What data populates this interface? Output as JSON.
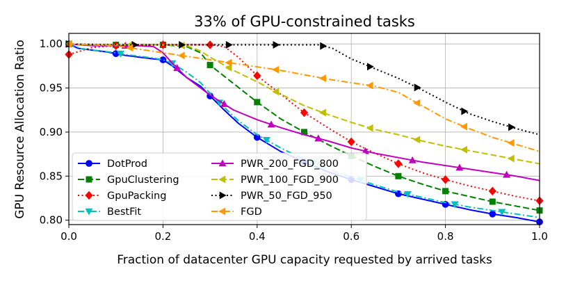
{
  "chart_data": {
    "type": "line",
    "title": "33% of GPU-constrained tasks",
    "xlabel": "Fraction of datacenter GPU capacity requested by arrived tasks",
    "ylabel": "GPU Resource Allocation Ratio",
    "xlim": [
      0.0,
      1.0
    ],
    "ylim": [
      0.795,
      1.012
    ],
    "xticks": [
      "0.0",
      "0.2",
      "0.4",
      "0.6",
      "0.8",
      "1.0"
    ],
    "yticks": [
      "0.80",
      "0.85",
      "0.90",
      "0.95",
      "1.00"
    ],
    "grid": true,
    "legend_position": "lower-left",
    "series": [
      {
        "name": "DotProd",
        "color": "#0000ff",
        "dash": "solid",
        "marker": "circle",
        "x": [
          0.0,
          0.02,
          0.05,
          0.08,
          0.1,
          0.12,
          0.15,
          0.18,
          0.2,
          0.22,
          0.25,
          0.28,
          0.3,
          0.33,
          0.36,
          0.4,
          0.45,
          0.5,
          0.55,
          0.6,
          0.65,
          0.7,
          0.75,
          0.8,
          0.85,
          0.9,
          0.95,
          1.0
        ],
        "y": [
          1.0,
          0.995,
          0.993,
          0.991,
          0.989,
          0.987,
          0.985,
          0.983,
          0.982,
          0.975,
          0.962,
          0.952,
          0.941,
          0.925,
          0.91,
          0.894,
          0.878,
          0.866,
          0.855,
          0.846,
          0.838,
          0.83,
          0.824,
          0.818,
          0.812,
          0.807,
          0.803,
          0.798
        ],
        "markers_at": [
          0.0,
          0.1,
          0.2,
          0.3,
          0.4,
          0.5,
          0.6,
          0.7,
          0.8,
          0.9,
          1.0
        ]
      },
      {
        "name": "GpuClustering",
        "color": "#008000",
        "dash": "long",
        "marker": "square",
        "x": [
          0.0,
          0.05,
          0.1,
          0.15,
          0.2,
          0.25,
          0.28,
          0.3,
          0.35,
          0.4,
          0.45,
          0.5,
          0.55,
          0.6,
          0.65,
          0.7,
          0.75,
          0.8,
          0.85,
          0.9,
          0.95,
          1.0
        ],
        "y": [
          1.0,
          0.999,
          0.999,
          0.999,
          0.999,
          0.997,
          0.99,
          0.976,
          0.955,
          0.934,
          0.915,
          0.9,
          0.886,
          0.873,
          0.861,
          0.85,
          0.841,
          0.833,
          0.827,
          0.821,
          0.816,
          0.811
        ],
        "markers_at": [
          0.0,
          0.1,
          0.2,
          0.3,
          0.4,
          0.5,
          0.6,
          0.7,
          0.8,
          0.9,
          1.0
        ]
      },
      {
        "name": "GpuPacking",
        "color": "#ff0000",
        "dash": "dot",
        "marker": "diamond",
        "x": [
          0.0,
          0.05,
          0.1,
          0.15,
          0.2,
          0.25,
          0.3,
          0.33,
          0.36,
          0.4,
          0.45,
          0.5,
          0.55,
          0.6,
          0.65,
          0.7,
          0.75,
          0.8,
          0.85,
          0.9,
          0.95,
          1.0
        ],
        "y": [
          0.988,
          0.996,
          0.998,
          0.999,
          0.999,
          0.999,
          0.999,
          0.997,
          0.985,
          0.964,
          0.943,
          0.922,
          0.905,
          0.889,
          0.876,
          0.864,
          0.854,
          0.846,
          0.839,
          0.833,
          0.827,
          0.822
        ],
        "markers_at": [
          0.0,
          0.1,
          0.2,
          0.3,
          0.4,
          0.5,
          0.6,
          0.7,
          0.8,
          0.9,
          1.0
        ]
      },
      {
        "name": "BestFit",
        "color": "#00bfbf",
        "dash": "dashdot",
        "marker": "triangle-down",
        "x": [
          0.0,
          0.03,
          0.07,
          0.1,
          0.12,
          0.15,
          0.18,
          0.2,
          0.22,
          0.25,
          0.28,
          0.3,
          0.33,
          0.36,
          0.4,
          0.45,
          0.5,
          0.55,
          0.6,
          0.65,
          0.7,
          0.75,
          0.8,
          0.85,
          0.9,
          0.95,
          1.0
        ],
        "y": [
          1.0,
          0.994,
          0.992,
          0.99,
          0.988,
          0.986,
          0.984,
          0.982,
          0.978,
          0.968,
          0.956,
          0.944,
          0.928,
          0.913,
          0.897,
          0.882,
          0.869,
          0.858,
          0.849,
          0.84,
          0.832,
          0.826,
          0.82,
          0.815,
          0.811,
          0.807,
          0.803
        ],
        "markers_at": [
          0.0,
          0.11,
          0.22,
          0.32,
          0.42,
          0.52,
          0.62,
          0.72,
          0.82,
          0.92
        ]
      },
      {
        "name": "PWR_200_FGD_800",
        "color": "#bf00bf",
        "dash": "solid",
        "marker": "triangle-up",
        "x": [
          0.0,
          0.05,
          0.1,
          0.15,
          0.18,
          0.2,
          0.22,
          0.25,
          0.3,
          0.35,
          0.4,
          0.45,
          0.5,
          0.55,
          0.6,
          0.65,
          0.7,
          0.75,
          0.8,
          0.85,
          0.9,
          0.95,
          1.0
        ],
        "y": [
          1.0,
          0.998,
          0.998,
          0.998,
          0.997,
          0.99,
          0.978,
          0.962,
          0.942,
          0.925,
          0.914,
          0.905,
          0.897,
          0.89,
          0.882,
          0.876,
          0.871,
          0.866,
          0.862,
          0.858,
          0.854,
          0.85,
          0.845
        ],
        "markers_at": [
          0.0,
          0.12,
          0.23,
          0.33,
          0.43,
          0.53,
          0.63,
          0.73,
          0.83,
          0.93
        ]
      },
      {
        "name": "PWR_100_FGD_900",
        "color": "#bfbf00",
        "dash": "long",
        "marker": "triangle-left",
        "x": [
          0.0,
          0.05,
          0.1,
          0.15,
          0.2,
          0.25,
          0.28,
          0.3,
          0.35,
          0.4,
          0.45,
          0.5,
          0.55,
          0.6,
          0.65,
          0.7,
          0.75,
          0.8,
          0.85,
          0.9,
          0.95,
          1.0
        ],
        "y": [
          1.0,
          0.999,
          0.999,
          0.999,
          0.999,
          0.998,
          0.992,
          0.985,
          0.97,
          0.957,
          0.943,
          0.93,
          0.92,
          0.911,
          0.903,
          0.897,
          0.89,
          0.884,
          0.879,
          0.874,
          0.869,
          0.864
        ],
        "markers_at": [
          0.0,
          0.13,
          0.24,
          0.34,
          0.44,
          0.54,
          0.64,
          0.74,
          0.84,
          0.94
        ]
      },
      {
        "name": "PWR_50_FGD_950",
        "color": "#000000",
        "dash": "dot",
        "marker": "triangle-right",
        "x": [
          0.0,
          0.1,
          0.2,
          0.3,
          0.4,
          0.5,
          0.53,
          0.56,
          0.6,
          0.65,
          0.7,
          0.75,
          0.8,
          0.85,
          0.9,
          0.95,
          1.0
        ],
        "y": [
          1.0,
          0.999,
          0.999,
          0.999,
          0.999,
          0.999,
          0.999,
          0.995,
          0.983,
          0.972,
          0.961,
          0.948,
          0.934,
          0.921,
          0.912,
          0.904,
          0.897
        ],
        "markers_at": [
          0.0,
          0.14,
          0.24,
          0.34,
          0.44,
          0.54,
          0.64,
          0.74,
          0.84,
          0.94
        ]
      },
      {
        "name": "FGD",
        "color": "#ff9900",
        "dash": "dashdot",
        "marker": "triangle-left",
        "x": [
          0.0,
          0.05,
          0.1,
          0.15,
          0.2,
          0.25,
          0.3,
          0.35,
          0.4,
          0.45,
          0.5,
          0.55,
          0.6,
          0.65,
          0.7,
          0.75,
          0.8,
          0.85,
          0.9,
          0.95,
          1.0
        ],
        "y": [
          1.0,
          0.999,
          0.998,
          0.994,
          0.99,
          0.986,
          0.982,
          0.978,
          0.974,
          0.97,
          0.965,
          0.96,
          0.956,
          0.952,
          0.945,
          0.93,
          0.915,
          0.904,
          0.894,
          0.886,
          0.878
        ],
        "markers_at": [
          0.0,
          0.13,
          0.24,
          0.34,
          0.44,
          0.54,
          0.64,
          0.74,
          0.84,
          0.94
        ]
      }
    ]
  }
}
